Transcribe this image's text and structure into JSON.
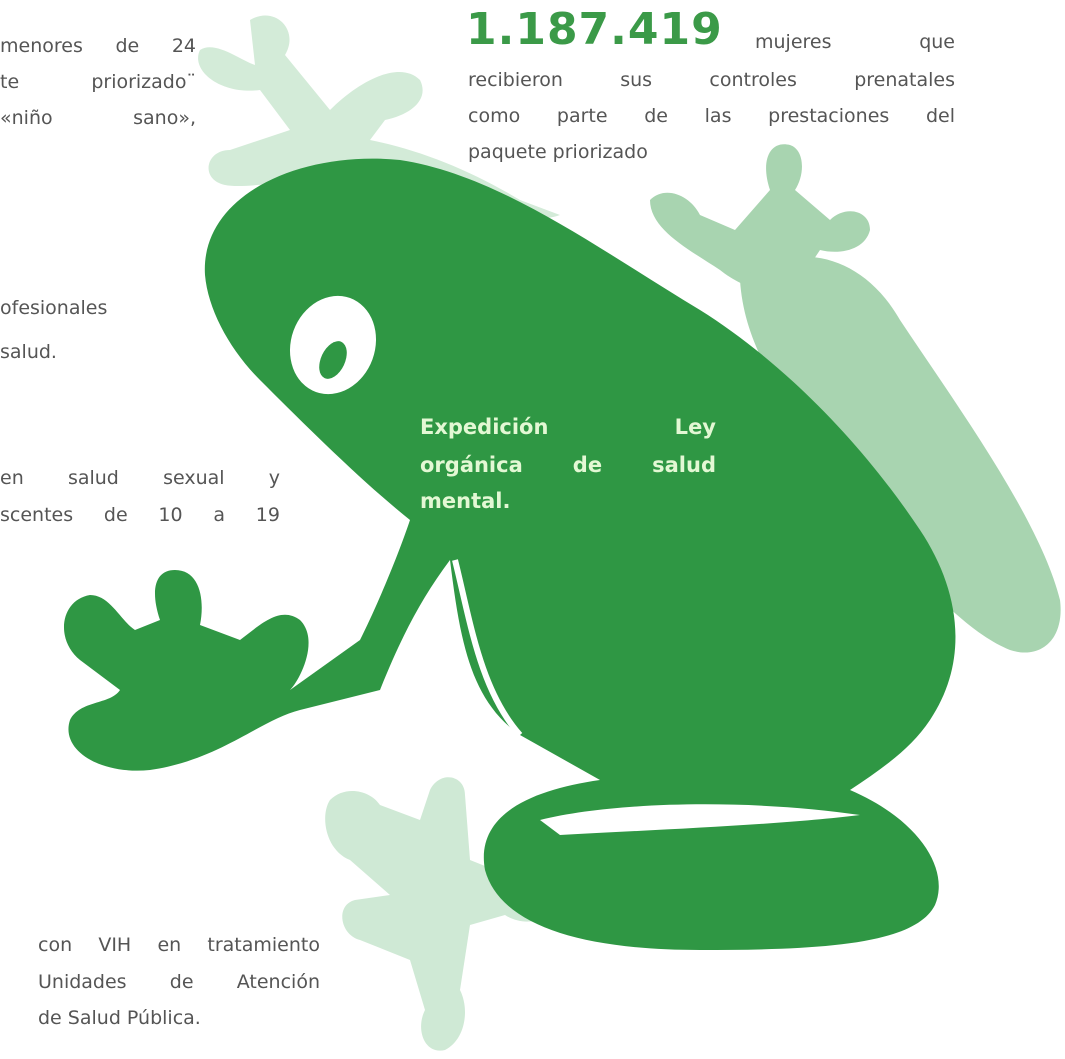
{
  "left_texts": [
    "menores de 24",
    "te priorizado¨",
    "«niño sano»,",
    "ofesionales",
    "salud.",
    "en salud sexual y",
    "scentes de 10 a 19",
    "con VIH en tratamiento",
    "Unidades de Atención",
    "de Salud Pública."
  ],
  "stat": {
    "number": "1.187.419",
    "lines": [
      "mujeres que",
      "recibieron sus controles prenatales",
      "como parte de las prestaciones del",
      "paquete priorizado"
    ]
  },
  "highlight": {
    "lines": [
      "Expedición Ley",
      "orgánica de salud",
      "mental."
    ]
  }
}
